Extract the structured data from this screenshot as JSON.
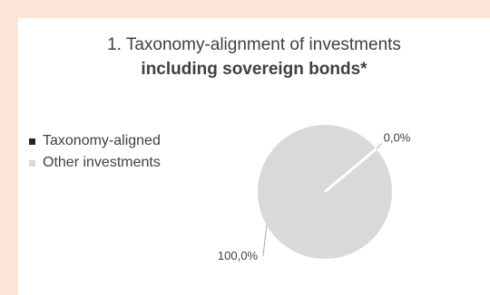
{
  "chart_data": {
    "type": "pie",
    "title": "1. Taxonomy-alignment of investments",
    "subtitle": "including sovereign bonds*",
    "categories": [
      "Taxonomy-aligned",
      "Other investments"
    ],
    "values": [
      0.0,
      100.0
    ],
    "data_labels": [
      "0,0%",
      "100,0%"
    ],
    "colors": [
      "#262626",
      "#d9d9d9"
    ],
    "legend_position": "left"
  },
  "colors": {
    "background": "#fbe5d6",
    "card": "#ffffff",
    "text": "#404040"
  }
}
